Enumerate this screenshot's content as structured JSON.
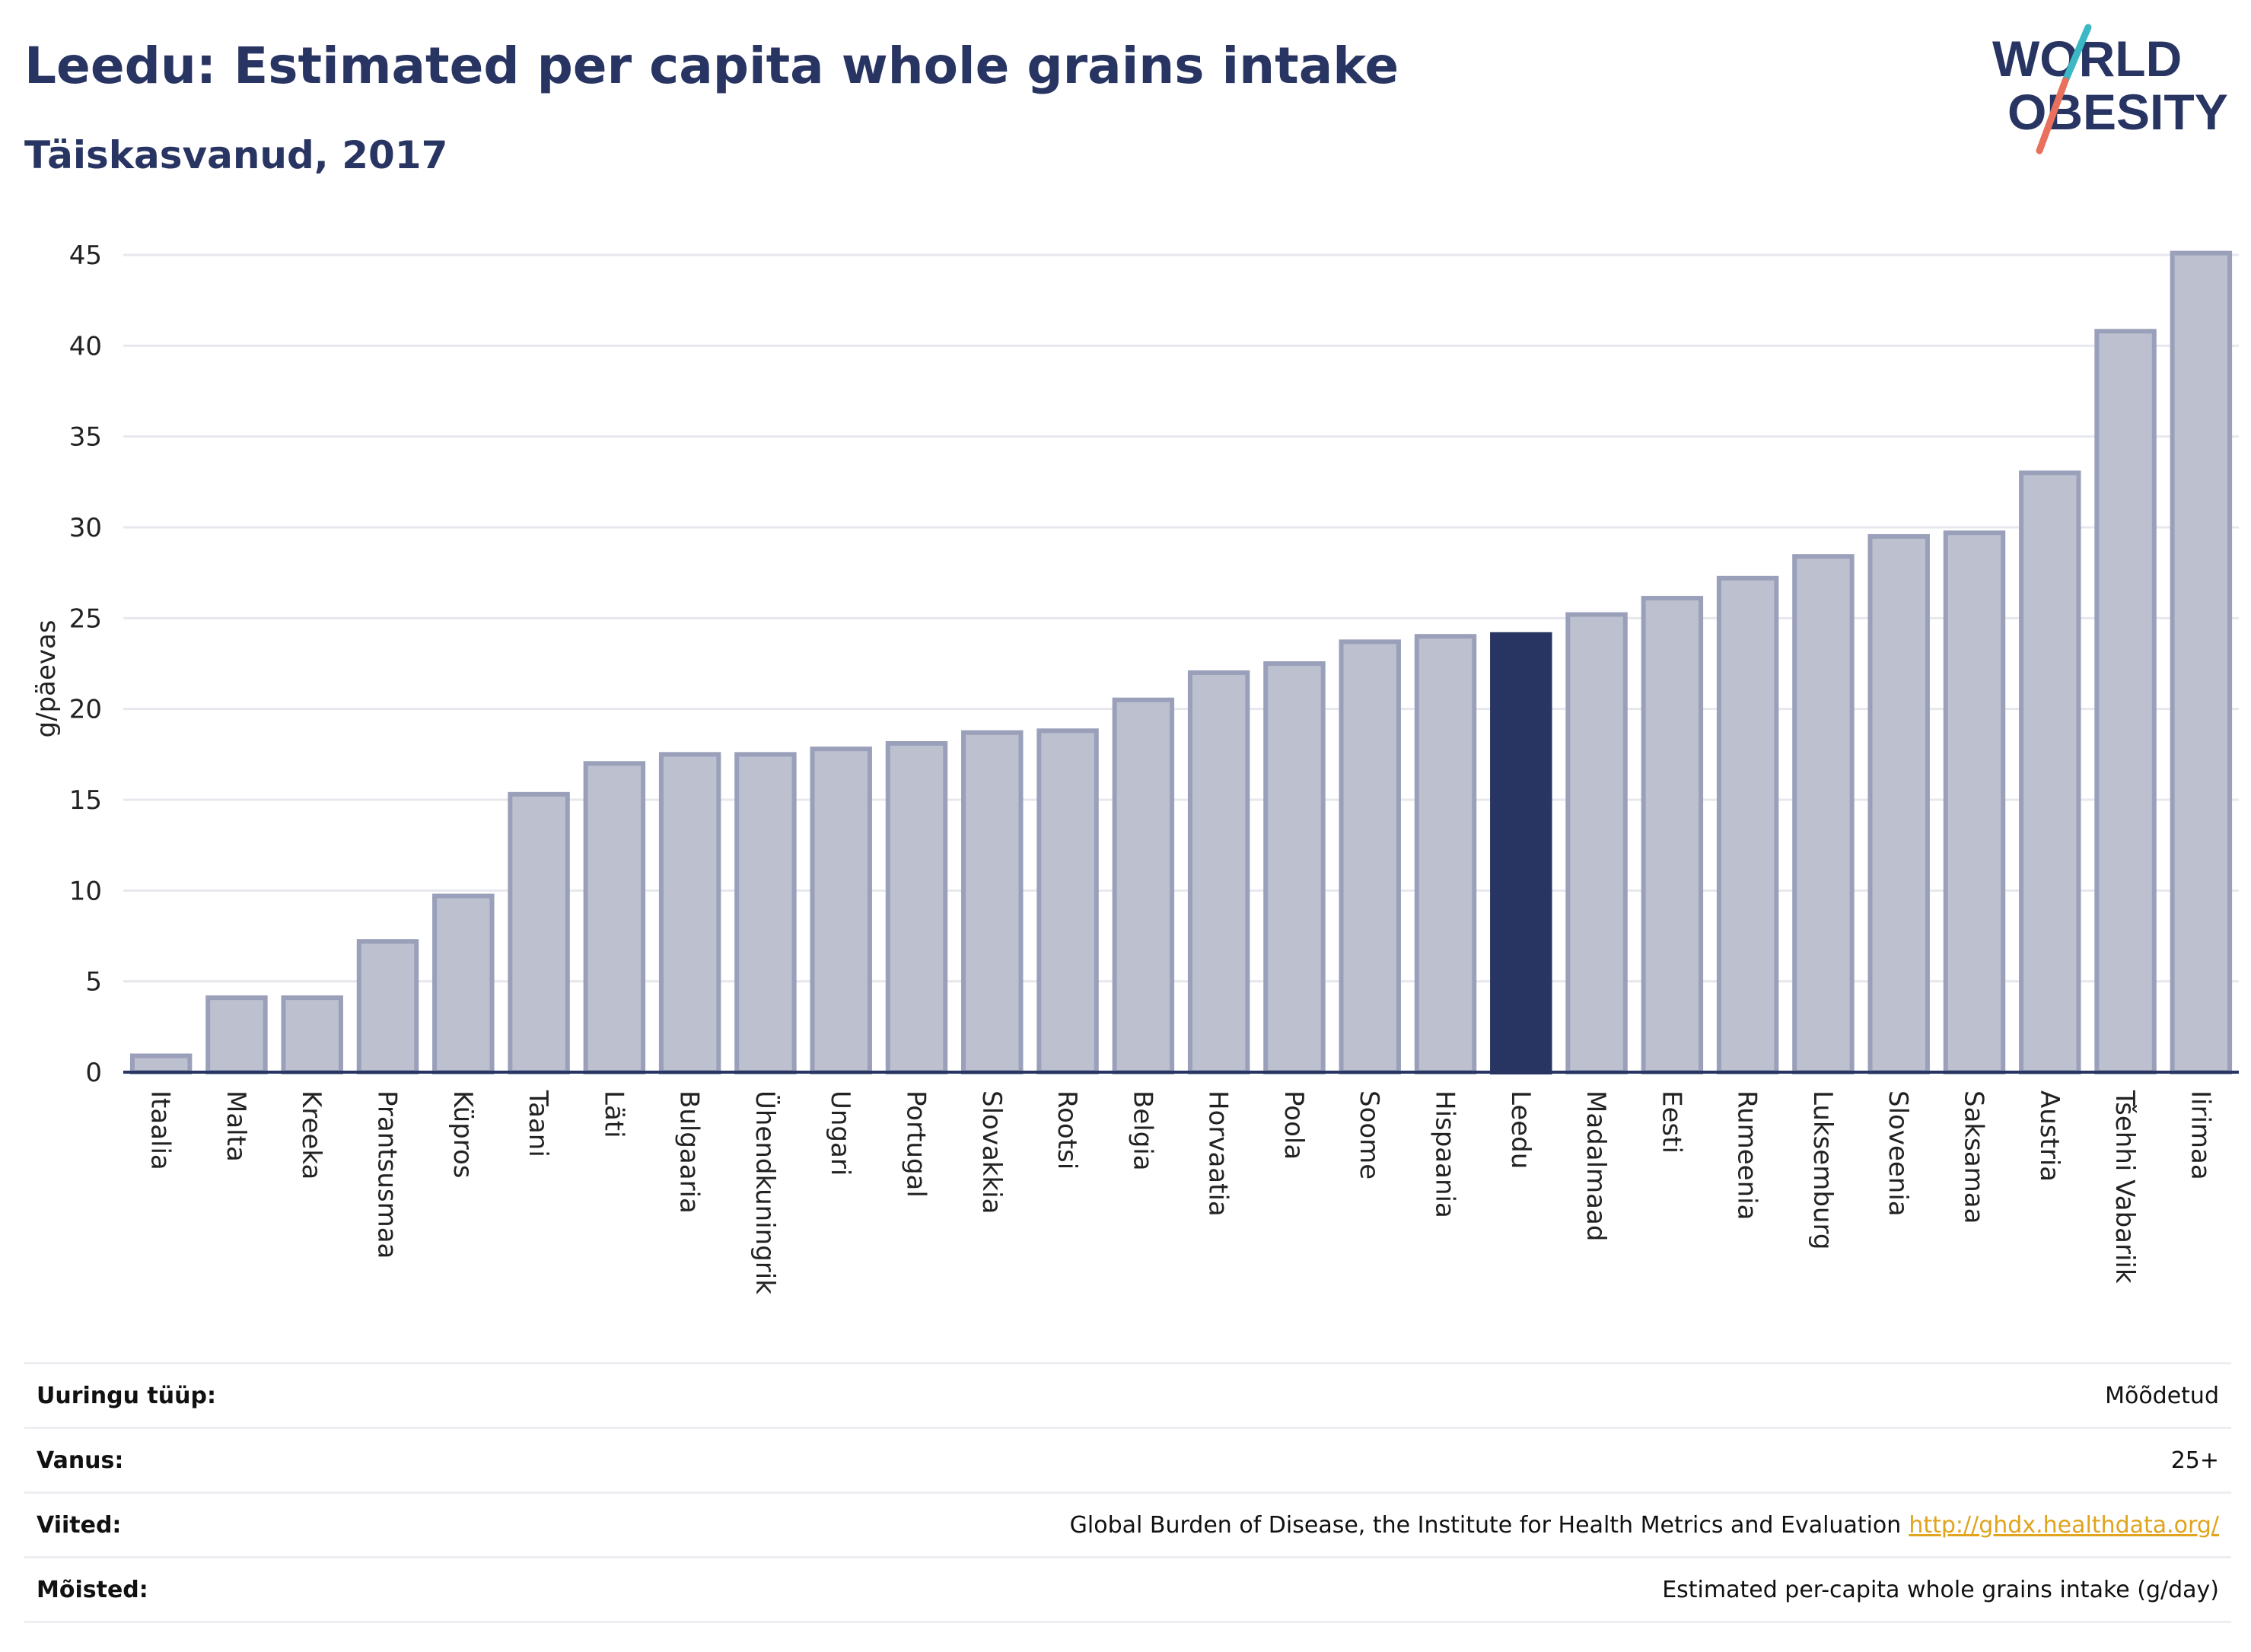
{
  "header": {
    "title": "Leedu: Estimated per capita whole grains intake",
    "subtitle": "Täiskasvanud, 2017"
  },
  "logo": {
    "line1": "WORLD",
    "line2": "OBESITY",
    "colors": {
      "text": "#283462",
      "slash_top": "#3bb8c3",
      "slash_bottom": "#e8705d"
    }
  },
  "chart_data": {
    "type": "bar",
    "ylabel": "g/päevas",
    "ylim": [
      0,
      45
    ],
    "yticks": [
      0,
      5,
      10,
      15,
      20,
      25,
      30,
      35,
      40,
      45
    ],
    "grid": true,
    "highlight": "Leedu",
    "colors": {
      "bar": "#bcc0cf",
      "bar_border": "#9aa0b9",
      "highlight": "#283462",
      "grid": "#e6e8ee",
      "axis": "#283462"
    },
    "categories": [
      "Itaalia",
      "Malta",
      "Kreeka",
      "Prantsusmaa",
      "Küpros",
      "Taani",
      "Läti",
      "Bulgaaria",
      "Ühendkuningrik",
      "Ungari",
      "Portugal",
      "Slovakkia",
      "Rootsi",
      "Belgia",
      "Horvaatia",
      "Poola",
      "Soome",
      "Hispaania",
      "Leedu",
      "Madalmaad",
      "Eesti",
      "Rumeenia",
      "Luksemburg",
      "Sloveenia",
      "Saksamaa",
      "Austria",
      "Tšehhi Vabariik",
      "Iirimaa"
    ],
    "values": [
      0.9,
      4.1,
      4.1,
      7.2,
      9.7,
      15.3,
      17.0,
      17.5,
      17.5,
      17.8,
      18.1,
      18.7,
      18.8,
      20.5,
      22.0,
      22.5,
      23.7,
      24.0,
      24.1,
      25.2,
      26.1,
      27.2,
      28.4,
      29.5,
      29.7,
      33.0,
      40.8,
      45.1
    ]
  },
  "info": {
    "rows": [
      {
        "label": "Uuringu tüüp:",
        "value": "Mõõdetud"
      },
      {
        "label": "Vanus:",
        "value": "25+"
      },
      {
        "label": "Viited:",
        "value": "Global Burden of Disease, the Institute for Health Metrics and Evaluation",
        "link": "http://ghdx.healthdata.org/"
      },
      {
        "label": "Mõisted:",
        "value": "Estimated per-capita whole grains intake (g/day)"
      }
    ]
  }
}
